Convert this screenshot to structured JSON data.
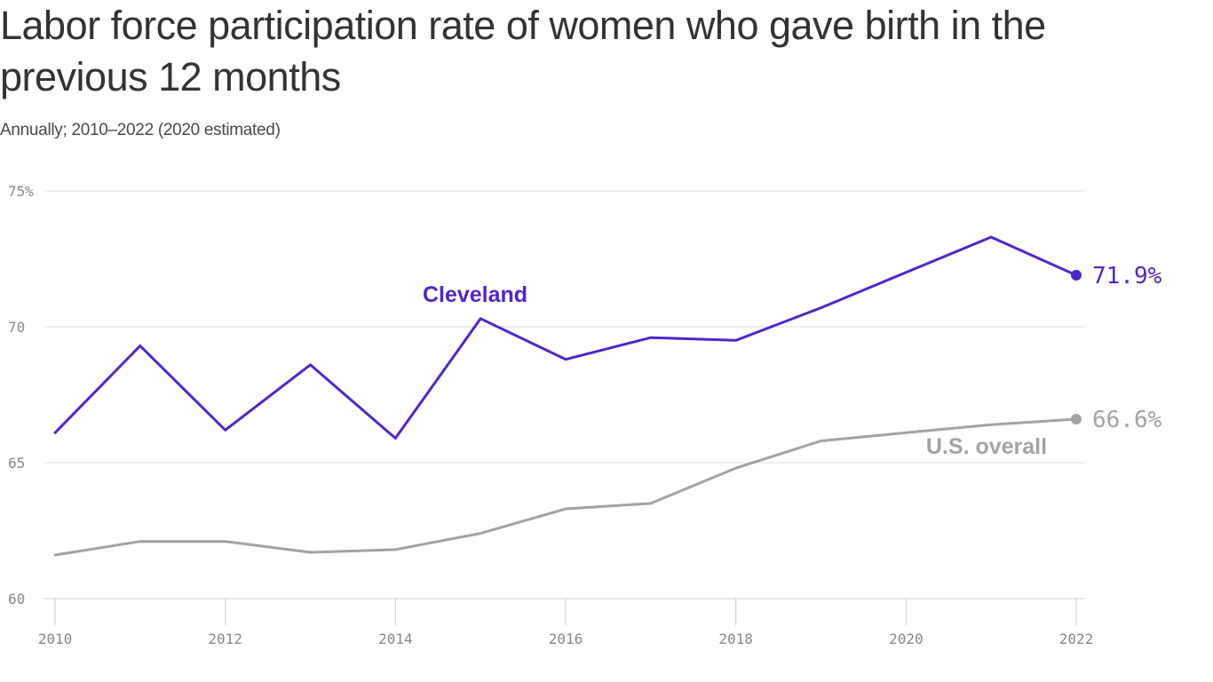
{
  "title": "Labor force participation rate of women who gave birth in the previous 12 months",
  "subtitle": "Annually; 2010–2022 (2020 estimated)",
  "chart_data": {
    "type": "line",
    "x": [
      2010,
      2011,
      2012,
      2013,
      2014,
      2015,
      2016,
      2017,
      2018,
      2019,
      2020,
      2021,
      2022
    ],
    "xlim": [
      2010,
      2022
    ],
    "ylim": [
      60,
      75
    ],
    "yticks": [
      {
        "value": 75,
        "label": "75%"
      },
      {
        "value": 70,
        "label": "70"
      },
      {
        "value": 65,
        "label": "65"
      },
      {
        "value": 60,
        "label": "60"
      }
    ],
    "xticks": [
      {
        "value": 2010,
        "label": "2010"
      },
      {
        "value": 2012,
        "label": "2012"
      },
      {
        "value": 2014,
        "label": "2014"
      },
      {
        "value": 2016,
        "label": "2016"
      },
      {
        "value": 2018,
        "label": "2018"
      },
      {
        "value": 2020,
        "label": "2020"
      },
      {
        "value": 2022,
        "label": "2022"
      }
    ],
    "grid": true,
    "series": [
      {
        "name": "Cleveland",
        "color": "#5126cc",
        "values": [
          66.1,
          69.3,
          66.2,
          68.6,
          65.9,
          70.3,
          68.8,
          69.6,
          69.5,
          70.7,
          72.0,
          73.3,
          71.9
        ],
        "end_label": "71.9%"
      },
      {
        "name": "U.S. overall",
        "color": "#a3a3a3",
        "values": [
          61.6,
          62.1,
          62.1,
          61.7,
          61.8,
          62.4,
          63.3,
          63.5,
          64.8,
          65.8,
          66.1,
          66.4,
          66.6
        ],
        "end_label": "66.6%"
      }
    ]
  }
}
